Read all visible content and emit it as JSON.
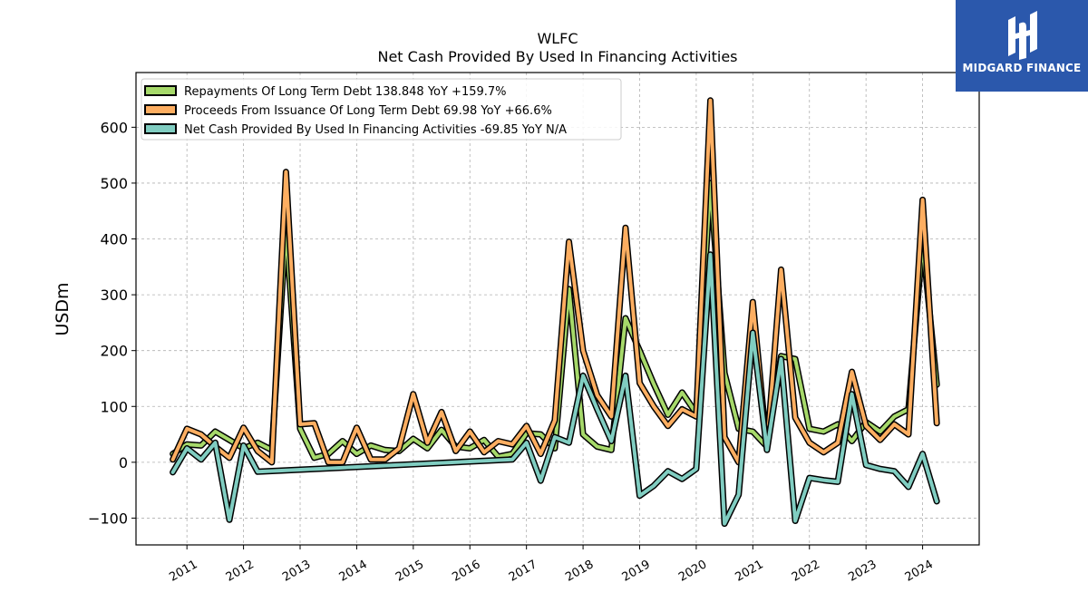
{
  "chart_data": {
    "type": "line",
    "title": "WLFC",
    "subtitle": "Net Cash Provided By Used In Financing Activities",
    "ylabel": "USDm",
    "xlabel": "",
    "xlim": [
      2010.1,
      2025.0
    ],
    "ylim": [
      -148,
      698
    ],
    "yticks": [
      -100,
      0,
      100,
      200,
      300,
      400,
      500,
      600
    ],
    "ytick_labels": [
      "−100",
      "0",
      "100",
      "200",
      "300",
      "400",
      "500",
      "600"
    ],
    "xticks": [
      2011,
      2012,
      2013,
      2014,
      2015,
      2016,
      2017,
      2018,
      2019,
      2020,
      2021,
      2022,
      2023,
      2024
    ],
    "xtick_labels": [
      "2011",
      "2012",
      "2013",
      "2014",
      "2015",
      "2016",
      "2017",
      "2018",
      "2019",
      "2020",
      "2021",
      "2022",
      "2023",
      "2024"
    ],
    "grid": true,
    "legend_position": "top-left",
    "series": [
      {
        "name": "Repayments Of Long Term Debt  138.848 YoY +159.7%",
        "color": "#a6d96a",
        "points": [
          [
            2010.75,
            15
          ],
          [
            2011.0,
            32
          ],
          [
            2011.25,
            30
          ],
          [
            2011.5,
            55
          ],
          [
            2011.75,
            40
          ],
          [
            2012.0,
            25
          ],
          [
            2012.25,
            35
          ],
          [
            2012.5,
            22
          ],
          [
            2012.75,
            420
          ],
          [
            2013.0,
            60
          ],
          [
            2013.25,
            8
          ],
          [
            2013.5,
            15
          ],
          [
            2013.75,
            38
          ],
          [
            2014.0,
            15
          ],
          [
            2014.25,
            30
          ],
          [
            2014.5,
            22
          ],
          [
            2014.75,
            20
          ],
          [
            2015.0,
            42
          ],
          [
            2015.25,
            25
          ],
          [
            2015.5,
            58
          ],
          [
            2015.75,
            28
          ],
          [
            2016.0,
            25
          ],
          [
            2016.25,
            40
          ],
          [
            2016.5,
            10
          ],
          [
            2016.75,
            15
          ],
          [
            2017.0,
            52
          ],
          [
            2017.25,
            50
          ],
          [
            2017.5,
            25
          ],
          [
            2017.75,
            310
          ],
          [
            2018.0,
            50
          ],
          [
            2018.25,
            28
          ],
          [
            2018.5,
            22
          ],
          [
            2018.75,
            258
          ],
          [
            2019.0,
            200
          ],
          [
            2019.25,
            140
          ],
          [
            2019.5,
            85
          ],
          [
            2019.75,
            125
          ],
          [
            2020.0,
            88
          ],
          [
            2020.25,
            500
          ],
          [
            2020.5,
            160
          ],
          [
            2020.75,
            60
          ],
          [
            2021.0,
            55
          ],
          [
            2021.25,
            28
          ],
          [
            2021.5,
            190
          ],
          [
            2021.75,
            185
          ],
          [
            2022.0,
            60
          ],
          [
            2022.25,
            55
          ],
          [
            2022.5,
            68
          ],
          [
            2022.75,
            38
          ],
          [
            2023.0,
            72
          ],
          [
            2023.25,
            55
          ],
          [
            2023.5,
            82
          ],
          [
            2023.75,
            95
          ],
          [
            2024.0,
            395
          ],
          [
            2024.25,
            138.848
          ]
        ]
      },
      {
        "name": "Proceeds From Issuance Of Long Term Debt  69.98 YoY +66.6%",
        "color": "#fdae61",
        "points": [
          [
            2010.75,
            5
          ],
          [
            2011.0,
            60
          ],
          [
            2011.25,
            50
          ],
          [
            2011.5,
            28
          ],
          [
            2011.75,
            8
          ],
          [
            2012.0,
            62
          ],
          [
            2012.25,
            20
          ],
          [
            2012.5,
            0
          ],
          [
            2012.75,
            520
          ],
          [
            2013.0,
            68
          ],
          [
            2013.25,
            70
          ],
          [
            2013.5,
            0
          ],
          [
            2013.75,
            0
          ],
          [
            2014.0,
            62
          ],
          [
            2014.25,
            5
          ],
          [
            2014.5,
            5
          ],
          [
            2014.75,
            25
          ],
          [
            2015.0,
            122
          ],
          [
            2015.25,
            35
          ],
          [
            2015.5,
            90
          ],
          [
            2015.75,
            20
          ],
          [
            2016.0,
            55
          ],
          [
            2016.25,
            18
          ],
          [
            2016.5,
            38
          ],
          [
            2016.75,
            32
          ],
          [
            2017.0,
            65
          ],
          [
            2017.25,
            15
          ],
          [
            2017.5,
            75
          ],
          [
            2017.75,
            395
          ],
          [
            2018.0,
            200
          ],
          [
            2018.25,
            120
          ],
          [
            2018.5,
            82
          ],
          [
            2018.75,
            420
          ],
          [
            2019.0,
            142
          ],
          [
            2019.25,
            100
          ],
          [
            2019.5,
            65
          ],
          [
            2019.75,
            95
          ],
          [
            2020.0,
            82
          ],
          [
            2020.25,
            648
          ],
          [
            2020.5,
            45
          ],
          [
            2020.75,
            0
          ],
          [
            2021.0,
            287
          ],
          [
            2021.25,
            25
          ],
          [
            2021.5,
            345
          ],
          [
            2021.75,
            80
          ],
          [
            2022.0,
            35
          ],
          [
            2022.25,
            18
          ],
          [
            2022.5,
            35
          ],
          [
            2022.75,
            162
          ],
          [
            2023.0,
            65
          ],
          [
            2023.25,
            40
          ],
          [
            2023.5,
            68
          ],
          [
            2023.75,
            50
          ],
          [
            2024.0,
            470
          ],
          [
            2024.25,
            69.98
          ]
        ]
      },
      {
        "name": "Net Cash Provided By Used In Financing Activities  -69.85 YoY N/A",
        "color": "#80cdc1",
        "points": [
          [
            2010.75,
            -18
          ],
          [
            2011.0,
            25
          ],
          [
            2011.25,
            5
          ],
          [
            2011.5,
            35
          ],
          [
            2011.75,
            -103
          ],
          [
            2012.0,
            30
          ],
          [
            2012.25,
            -17
          ],
          [
            2016.75,
            5
          ],
          [
            2017.0,
            35
          ],
          [
            2017.25,
            -33
          ],
          [
            2017.5,
            45
          ],
          [
            2017.75,
            35
          ],
          [
            2018.0,
            155
          ],
          [
            2018.25,
            95
          ],
          [
            2018.5,
            38
          ],
          [
            2018.75,
            155
          ],
          [
            2019.0,
            -60
          ],
          [
            2019.25,
            -42
          ],
          [
            2019.5,
            -16
          ],
          [
            2019.75,
            -30
          ],
          [
            2020.0,
            -12
          ],
          [
            2020.25,
            372
          ],
          [
            2020.5,
            -110
          ],
          [
            2020.75,
            -58
          ],
          [
            2021.0,
            232
          ],
          [
            2021.25,
            22
          ],
          [
            2021.5,
            185
          ],
          [
            2021.75,
            -105
          ],
          [
            2022.0,
            -28
          ],
          [
            2022.25,
            -32
          ],
          [
            2022.5,
            -35
          ],
          [
            2022.75,
            122
          ],
          [
            2023.0,
            -5
          ],
          [
            2023.25,
            -12
          ],
          [
            2023.5,
            -16
          ],
          [
            2023.75,
            -44
          ],
          [
            2024.0,
            15
          ],
          [
            2024.25,
            -69.85
          ]
        ]
      }
    ]
  },
  "logo": {
    "text": "MIDGARD FINANCE",
    "background": "#2b58ac"
  }
}
